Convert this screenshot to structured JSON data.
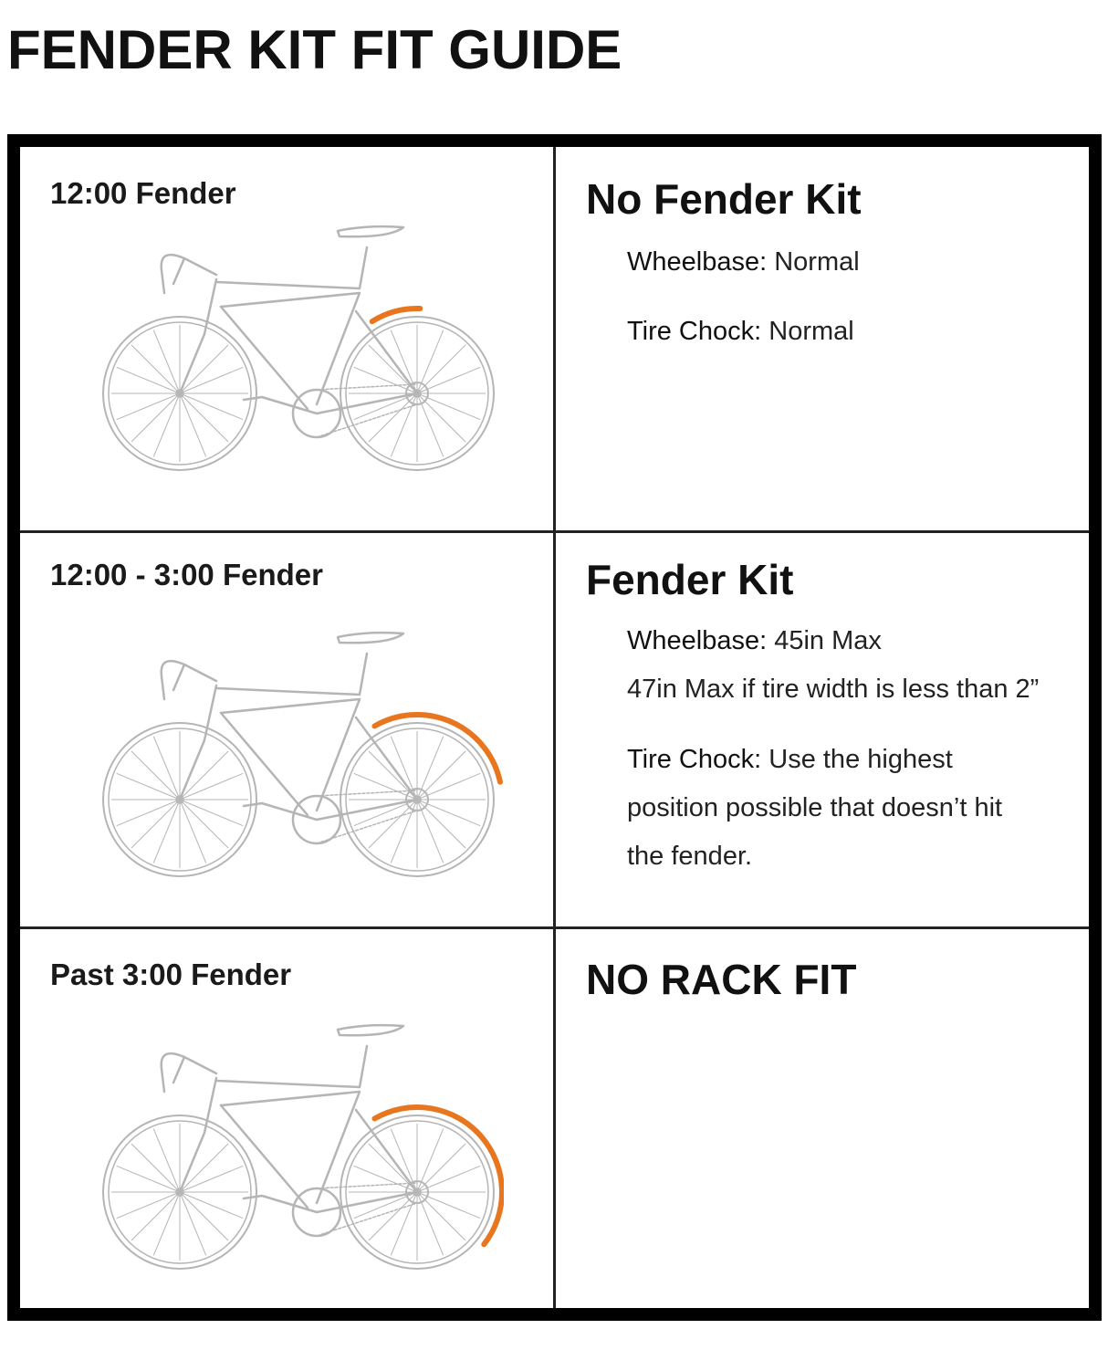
{
  "title": "FENDER KIT FIT GUIDE",
  "colors": {
    "fender": "#e8761e",
    "bike_outline": "#b5b5b5",
    "border": "#000000"
  },
  "rows": [
    {
      "fender_label": "12:00 Fender",
      "heading": "No Fender Kit",
      "lines": [
        {
          "label": "Wheelbase:",
          "value": "Normal"
        },
        {
          "label": "Tire Chock:",
          "value": "Normal"
        }
      ]
    },
    {
      "fender_label": "12:00 - 3:00 Fender",
      "heading": "Fender Kit",
      "wheelbase": {
        "label": "Wheelbase:",
        "value": "45in Max",
        "note": "47in Max if tire width is less than 2”"
      },
      "tire_chock": {
        "label": "Tire Chock:",
        "value_line1": "Use the highest",
        "value_line2": "position possible that doesn’t hit",
        "value_line3": "the fender."
      }
    },
    {
      "fender_label": "Past 3:00 Fender",
      "heading": "NO RACK FIT"
    }
  ]
}
